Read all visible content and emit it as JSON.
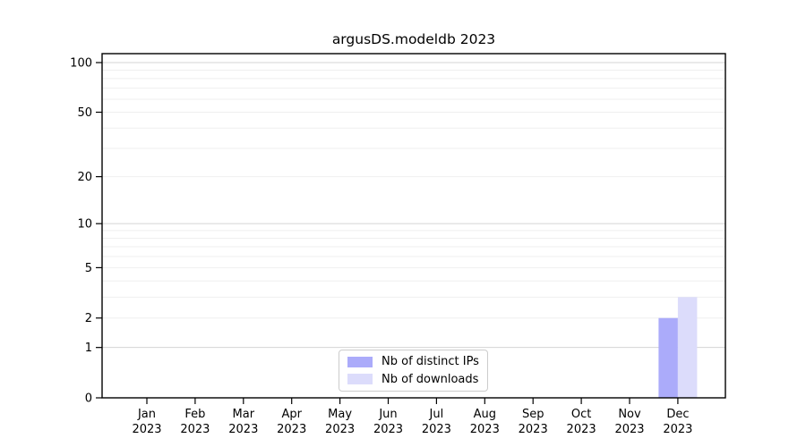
{
  "chart_data": {
    "type": "bar",
    "title": "argusDS.modeldb 2023",
    "x_tick_months": [
      "Jan",
      "Feb",
      "Mar",
      "Apr",
      "May",
      "Jun",
      "Jul",
      "Aug",
      "Sep",
      "Oct",
      "Nov",
      "Dec"
    ],
    "x_tick_year": "2023",
    "y_ticks": [
      100,
      50,
      20,
      10,
      5,
      2,
      1,
      0
    ],
    "y_scale": "log1p",
    "ylim": [
      0,
      113
    ],
    "grid": "horizontal major and minor gridlines",
    "legend_position": "lower center inside axes",
    "series": [
      {
        "name": "Nb of distinct IPs",
        "color": "#ababfa",
        "values": [
          0,
          0,
          0,
          0,
          0,
          0,
          0,
          0,
          0,
          0,
          0,
          2
        ]
      },
      {
        "name": "Nb of downloads",
        "color": "#dcdcfb",
        "values": [
          0,
          0,
          0,
          0,
          0,
          0,
          0,
          0,
          0,
          0,
          0,
          3
        ]
      }
    ],
    "minor_grid_values": [
      2,
      3,
      4,
      5,
      6,
      7,
      8,
      9,
      20,
      30,
      40,
      50,
      60,
      70,
      80,
      90
    ],
    "major_grid_values": [
      1,
      10,
      100
    ],
    "colors": {
      "spine": "#000000",
      "major_grid": "#d4d4d4",
      "minor_grid": "#efefef"
    }
  }
}
